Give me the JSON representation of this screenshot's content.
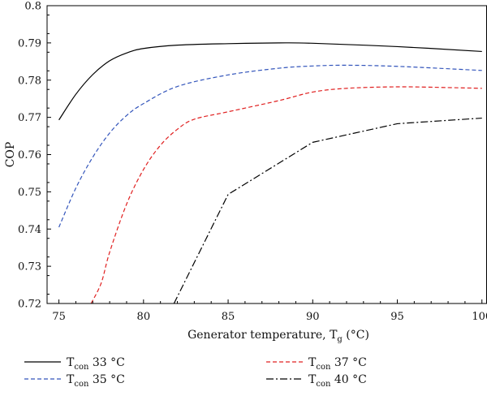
{
  "chart_data": {
    "type": "line",
    "xlabel": {
      "main": "Generator temperature, T",
      "sub": "g",
      "suffix": " (°C)"
    },
    "ylabel": "COP",
    "xlim": [
      74.3,
      100.3
    ],
    "ylim": [
      0.72,
      0.8
    ],
    "x_ticks": [
      "75",
      "80",
      "85",
      "90",
      "95",
      "100"
    ],
    "y_ticks": [
      "0.72",
      "0.73",
      "0.74",
      "0.75",
      "0.76",
      "0.77",
      "0.78",
      "0.79",
      "0.8"
    ],
    "grid": false,
    "legend_position": "bottom",
    "series": [
      {
        "name": "33 °C",
        "legend": {
          "main": "T",
          "sub": "con",
          "suffix": " 33 °C"
        },
        "color": "#000000",
        "dash": "solid",
        "points": [
          [
            75,
            0.7693
          ],
          [
            76,
            0.7762
          ],
          [
            77,
            0.7815
          ],
          [
            78,
            0.7852
          ],
          [
            79,
            0.7873
          ],
          [
            80,
            0.7885
          ],
          [
            82,
            0.7894
          ],
          [
            85,
            0.7898
          ],
          [
            88,
            0.79
          ],
          [
            90,
            0.7899
          ],
          [
            95,
            0.789
          ],
          [
            100,
            0.7877
          ]
        ]
      },
      {
        "name": "35 °C",
        "legend": {
          "main": "T",
          "sub": "con",
          "suffix": " 35 °C"
        },
        "color": "#3355bb",
        "dash": "short",
        "points": [
          [
            75,
            0.7405
          ],
          [
            76,
            0.751
          ],
          [
            77,
            0.7593
          ],
          [
            78,
            0.7658
          ],
          [
            79,
            0.7705
          ],
          [
            80,
            0.7737
          ],
          [
            82,
            0.7783
          ],
          [
            85,
            0.7814
          ],
          [
            88,
            0.7832
          ],
          [
            90,
            0.7838
          ],
          [
            92,
            0.784
          ],
          [
            95,
            0.7837
          ],
          [
            100,
            0.7826
          ]
        ]
      },
      {
        "name": "37 °C",
        "legend": {
          "main": "T",
          "sub": "con",
          "suffix": " 37 °C"
        },
        "color": "#e02020",
        "dash": "short",
        "points": [
          [
            76.9,
            0.72
          ],
          [
            77.5,
            0.7255
          ],
          [
            78,
            0.7338
          ],
          [
            79,
            0.7467
          ],
          [
            80,
            0.756
          ],
          [
            81,
            0.7625
          ],
          [
            82,
            0.7668
          ],
          [
            83,
            0.7695
          ],
          [
            85,
            0.7715
          ],
          [
            88,
            0.7745
          ],
          [
            90,
            0.7768
          ],
          [
            92,
            0.7778
          ],
          [
            95,
            0.7782
          ],
          [
            98,
            0.778
          ],
          [
            100,
            0.7778
          ]
        ]
      },
      {
        "name": "40 °C",
        "legend": {
          "main": "T",
          "sub": "con",
          "suffix": " 40 °C"
        },
        "color": "#000000",
        "dash": "dashdot",
        "points": [
          [
            81.8,
            0.72
          ],
          [
            85,
            0.7493
          ],
          [
            90,
            0.7633
          ],
          [
            95,
            0.7683
          ],
          [
            100,
            0.7698
          ]
        ]
      }
    ]
  }
}
